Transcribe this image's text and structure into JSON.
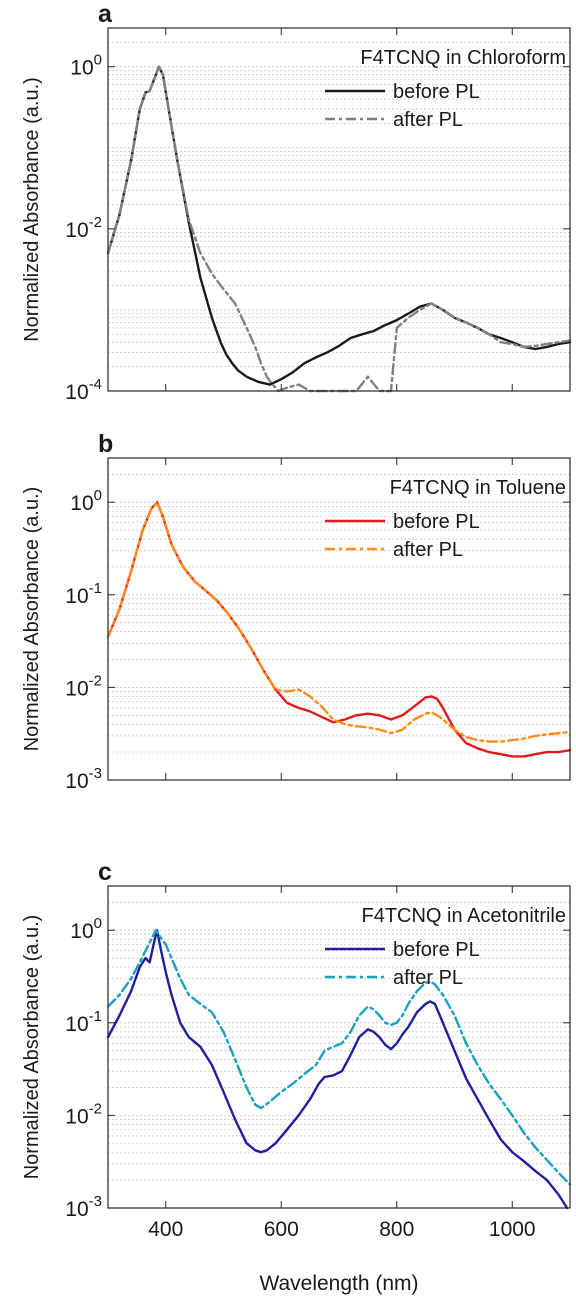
{
  "figure": {
    "xlabel": "Wavelength (nm)",
    "xtick_labels": [
      "400",
      "600",
      "800",
      "1000"
    ]
  },
  "chart_data": [
    {
      "type": "line",
      "panel_label": "a",
      "title": "",
      "annotation": "F4TCNQ in Chloroform",
      "xlabel": "",
      "ylabel": "Normalized Absorbance (a.u.)",
      "xlim": [
        300,
        1100
      ],
      "ylim": [
        0.0001,
        3
      ],
      "yscale": "log",
      "ytick_labels": [
        {
          "base": "10",
          "exp": "0",
          "value": 1
        },
        {
          "base": "10",
          "exp": "-2",
          "value": 0.01
        },
        {
          "base": "10",
          "exp": "-4",
          "value": 0.0001
        }
      ],
      "grid": "horizontal minor (log)",
      "legend_position": "top-right",
      "series": [
        {
          "name": "before PL",
          "color": "#1a1a1a",
          "dash": "solid",
          "x": [
            300,
            320,
            340,
            355,
            365,
            372,
            380,
            388,
            395,
            405,
            420,
            440,
            460,
            480,
            495,
            505,
            515,
            525,
            540,
            560,
            580,
            600,
            620,
            640,
            660,
            680,
            700,
            720,
            740,
            760,
            780,
            800,
            820,
            840,
            860,
            880,
            900,
            920,
            940,
            960,
            980,
            1000,
            1020,
            1040,
            1060,
            1080,
            1100
          ],
          "y": [
            0.005,
            0.015,
            0.07,
            0.3,
            0.48,
            0.5,
            0.7,
            1.0,
            0.8,
            0.3,
            0.07,
            0.012,
            0.0025,
            0.0008,
            0.0004,
            0.00028,
            0.00022,
            0.00018,
            0.00015,
            0.00013,
            0.00012,
            0.00014,
            0.00017,
            0.00022,
            0.00026,
            0.0003,
            0.00036,
            0.00045,
            0.0005,
            0.00055,
            0.00065,
            0.00075,
            0.0009,
            0.0011,
            0.0012,
            0.001,
            0.0008,
            0.0007,
            0.0006,
            0.0005,
            0.00045,
            0.0004,
            0.00035,
            0.00033,
            0.00035,
            0.00038,
            0.0004
          ]
        },
        {
          "name": "after PL",
          "color": "#808080",
          "dash": "dashdot",
          "x": [
            300,
            320,
            340,
            355,
            365,
            372,
            380,
            388,
            395,
            405,
            420,
            440,
            460,
            480,
            500,
            520,
            540,
            555,
            565,
            575,
            585,
            595,
            610,
            630,
            650,
            670,
            690,
            710,
            730,
            750,
            770,
            790,
            800,
            820,
            840,
            860,
            880,
            900,
            920,
            940,
            960,
            980,
            1000,
            1020,
            1040,
            1060,
            1080,
            1100
          ],
          "y": [
            0.005,
            0.015,
            0.07,
            0.3,
            0.48,
            0.5,
            0.7,
            1.0,
            0.8,
            0.3,
            0.07,
            0.013,
            0.005,
            0.0028,
            0.0018,
            0.0012,
            0.0006,
            0.00035,
            0.00022,
            0.00015,
            0.00012,
            0.0001,
            0.00011,
            0.00012,
            0.0001,
            0.0001,
            0.0001,
            0.0001,
            0.0001,
            0.00015,
            0.0001,
            0.0001,
            0.0006,
            0.0008,
            0.001,
            0.0012,
            0.001,
            0.0008,
            0.0007,
            0.0006,
            0.0005,
            0.0004,
            0.00038,
            0.00035,
            0.00036,
            0.00038,
            0.0004,
            0.00042
          ]
        }
      ]
    },
    {
      "type": "line",
      "panel_label": "b",
      "title": "",
      "annotation": "F4TCNQ in Toluene",
      "xlabel": "",
      "ylabel": "Normalized Absorbance (a.u.)",
      "xlim": [
        300,
        1100
      ],
      "ylim": [
        0.001,
        3
      ],
      "yscale": "log",
      "ytick_labels": [
        {
          "base": "10",
          "exp": "0",
          "value": 1
        },
        {
          "base": "10",
          "exp": "-1",
          "value": 0.1
        },
        {
          "base": "10",
          "exp": "-2",
          "value": 0.01
        },
        {
          "base": "10",
          "exp": "-3",
          "value": 0.001
        }
      ],
      "grid": "horizontal minor (log)",
      "legend_position": "top-right",
      "series": [
        {
          "name": "before PL",
          "color": "#e31a1c",
          "dash": "solid",
          "x": [
            300,
            320,
            340,
            360,
            375,
            385,
            395,
            410,
            430,
            450,
            470,
            490,
            510,
            530,
            550,
            570,
            590,
            610,
            630,
            650,
            670,
            690,
            710,
            730,
            750,
            770,
            790,
            810,
            830,
            850,
            860,
            870,
            880,
            900,
            920,
            940,
            960,
            980,
            1000,
            1020,
            1040,
            1060,
            1080,
            1100
          ],
          "y": [
            0.035,
            0.07,
            0.18,
            0.5,
            0.85,
            1.0,
            0.7,
            0.35,
            0.2,
            0.14,
            0.11,
            0.085,
            0.06,
            0.04,
            0.025,
            0.015,
            0.0095,
            0.0068,
            0.006,
            0.0055,
            0.0048,
            0.0042,
            0.0045,
            0.005,
            0.0052,
            0.005,
            0.0045,
            0.005,
            0.0062,
            0.0078,
            0.008,
            0.0075,
            0.006,
            0.0035,
            0.0025,
            0.0022,
            0.002,
            0.0019,
            0.0018,
            0.0018,
            0.0019,
            0.002,
            0.002,
            0.0021
          ]
        },
        {
          "name": "after PL",
          "color": "#ff8c1a",
          "dash": "dashdot",
          "x": [
            300,
            320,
            340,
            360,
            375,
            385,
            395,
            410,
            430,
            450,
            470,
            490,
            510,
            530,
            550,
            570,
            590,
            610,
            630,
            650,
            670,
            690,
            710,
            730,
            750,
            770,
            790,
            810,
            830,
            850,
            860,
            870,
            880,
            900,
            920,
            940,
            960,
            980,
            1000,
            1020,
            1040,
            1060,
            1080,
            1100
          ],
          "y": [
            0.035,
            0.07,
            0.18,
            0.5,
            0.85,
            1.0,
            0.7,
            0.35,
            0.2,
            0.14,
            0.11,
            0.085,
            0.06,
            0.04,
            0.025,
            0.015,
            0.0095,
            0.009,
            0.0095,
            0.008,
            0.0062,
            0.0045,
            0.004,
            0.0038,
            0.0037,
            0.0035,
            0.0032,
            0.0035,
            0.0045,
            0.0052,
            0.0054,
            0.005,
            0.0045,
            0.0035,
            0.0029,
            0.0027,
            0.0026,
            0.0026,
            0.0027,
            0.0028,
            0.003,
            0.0031,
            0.0032,
            0.0033
          ]
        }
      ]
    },
    {
      "type": "line",
      "panel_label": "c",
      "title": "",
      "annotation": "F4TCNQ in Acetonitrile",
      "xlabel": "Wavelength (nm)",
      "ylabel": "Normalized Absorbance (a.u.)",
      "xlim": [
        300,
        1100
      ],
      "ylim": [
        0.001,
        3
      ],
      "yscale": "log",
      "ytick_labels": [
        {
          "base": "10",
          "exp": "0",
          "value": 1
        },
        {
          "base": "10",
          "exp": "-1",
          "value": 0.1
        },
        {
          "base": "10",
          "exp": "-2",
          "value": 0.01
        },
        {
          "base": "10",
          "exp": "-3",
          "value": 0.001
        }
      ],
      "grid": "horizontal minor (log)",
      "legend_position": "top-right",
      "series": [
        {
          "name": "before PL",
          "color": "#1f1f9e",
          "dash": "solid",
          "x": [
            300,
            320,
            340,
            355,
            365,
            372,
            380,
            385,
            392,
            400,
            410,
            425,
            440,
            460,
            480,
            500,
            520,
            540,
            555,
            565,
            575,
            590,
            610,
            630,
            650,
            665,
            675,
            690,
            705,
            720,
            735,
            750,
            760,
            770,
            780,
            790,
            800,
            810,
            820,
            835,
            850,
            858,
            866,
            880,
            900,
            920,
            940,
            960,
            980,
            1000,
            1020,
            1040,
            1060,
            1080,
            1095
          ],
          "y": [
            0.07,
            0.12,
            0.22,
            0.4,
            0.5,
            0.45,
            0.75,
            1.0,
            0.6,
            0.35,
            0.2,
            0.1,
            0.07,
            0.055,
            0.035,
            0.018,
            0.009,
            0.005,
            0.0042,
            0.004,
            0.0042,
            0.005,
            0.007,
            0.01,
            0.015,
            0.022,
            0.026,
            0.027,
            0.03,
            0.045,
            0.07,
            0.085,
            0.08,
            0.07,
            0.058,
            0.052,
            0.06,
            0.075,
            0.09,
            0.13,
            0.16,
            0.17,
            0.16,
            0.1,
            0.05,
            0.025,
            0.015,
            0.009,
            0.0055,
            0.004,
            0.0032,
            0.0025,
            0.002,
            0.0014,
            0.001
          ]
        },
        {
          "name": "after PL",
          "color": "#1aa0c0",
          "dash": "dashdot",
          "x": [
            300,
            320,
            340,
            355,
            365,
            375,
            383,
            390,
            400,
            410,
            425,
            440,
            460,
            480,
            500,
            520,
            540,
            555,
            565,
            580,
            600,
            620,
            640,
            660,
            675,
            690,
            705,
            720,
            735,
            750,
            760,
            770,
            780,
            790,
            800,
            810,
            820,
            835,
            850,
            858,
            866,
            880,
            900,
            920,
            940,
            960,
            980,
            1000,
            1020,
            1040,
            1060,
            1080,
            1100
          ],
          "y": [
            0.15,
            0.2,
            0.3,
            0.45,
            0.6,
            0.8,
            1.0,
            0.85,
            0.7,
            0.5,
            0.3,
            0.2,
            0.16,
            0.13,
            0.08,
            0.04,
            0.02,
            0.013,
            0.012,
            0.014,
            0.018,
            0.022,
            0.028,
            0.035,
            0.05,
            0.055,
            0.06,
            0.08,
            0.12,
            0.15,
            0.14,
            0.12,
            0.1,
            0.095,
            0.1,
            0.12,
            0.16,
            0.22,
            0.27,
            0.28,
            0.26,
            0.2,
            0.12,
            0.06,
            0.035,
            0.022,
            0.015,
            0.01,
            0.0065,
            0.0045,
            0.0033,
            0.0024,
            0.0018
          ]
        }
      ]
    }
  ]
}
